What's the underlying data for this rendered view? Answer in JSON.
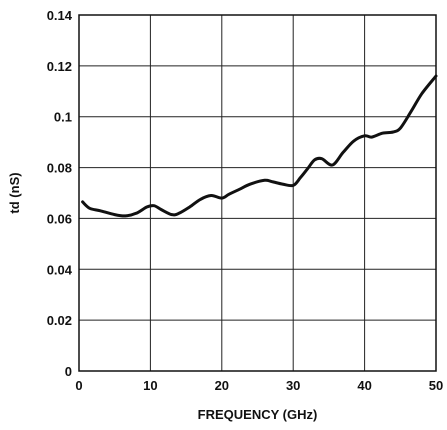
{
  "chart_data": {
    "type": "line",
    "xlabel": "FREQUENCY (GHz)",
    "ylabel": "td (nS)",
    "xlim": [
      0,
      50
    ],
    "ylim": [
      0,
      0.14
    ],
    "x_ticks": [
      "0",
      "10",
      "20",
      "30",
      "40",
      "50"
    ],
    "y_ticks": [
      "0",
      "0.02",
      "0.04",
      "0.06",
      "0.08",
      "0.1",
      "0.12",
      "0.14"
    ],
    "grid": true,
    "series": [
      {
        "color": "#111111",
        "x": [
          0.5,
          1.5,
          3,
          5,
          6.5,
          8,
          9.5,
          10.5,
          11.5,
          13,
          14,
          15.5,
          17,
          18.5,
          20,
          21,
          22.5,
          24,
          26,
          27,
          28.5,
          30,
          31,
          32,
          33,
          34,
          35.5,
          37,
          38.5,
          40,
          41,
          42.5,
          44,
          45,
          46.5,
          48,
          50
        ],
        "y": [
          0.0665,
          0.064,
          0.063,
          0.0615,
          0.061,
          0.062,
          0.0645,
          0.065,
          0.0635,
          0.0615,
          0.062,
          0.0645,
          0.0675,
          0.069,
          0.068,
          0.0695,
          0.0715,
          0.0735,
          0.075,
          0.0745,
          0.0735,
          0.073,
          0.076,
          0.0795,
          0.083,
          0.0835,
          0.081,
          0.086,
          0.0905,
          0.0925,
          0.092,
          0.0935,
          0.094,
          0.0955,
          0.102,
          0.109,
          0.116
        ]
      }
    ]
  }
}
